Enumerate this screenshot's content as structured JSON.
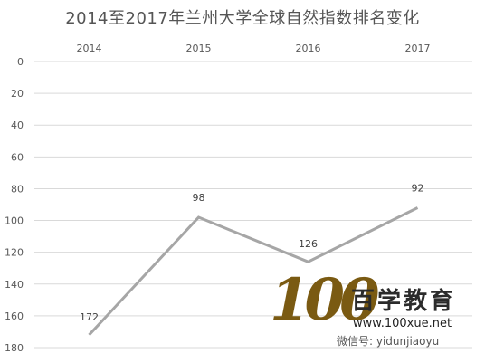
{
  "chart_data": {
    "type": "line",
    "title": "2014至2017年兰州大学全球自然指数排名变化",
    "categories": [
      "2014",
      "2015",
      "2016",
      "2017"
    ],
    "values": [
      172,
      98,
      126,
      92
    ],
    "data_labels": [
      "172",
      "98",
      "126",
      "92"
    ],
    "y_ticks": [
      "0",
      "20",
      "40",
      "60",
      "80",
      "100",
      "120",
      "140",
      "160",
      "180"
    ],
    "ylim": [
      0,
      180
    ],
    "y_reversed": true,
    "x_axis_position": "top",
    "grid": true,
    "legend": "none",
    "line_color": "#a6a6a6",
    "grid_color": "#d9d9d9",
    "label_color": "#595959"
  },
  "watermark": {
    "logo_text": "100",
    "name_cn": "百学教育",
    "url": "www.100xue.net",
    "wechat": "微信号: yidunjiaoyu"
  }
}
